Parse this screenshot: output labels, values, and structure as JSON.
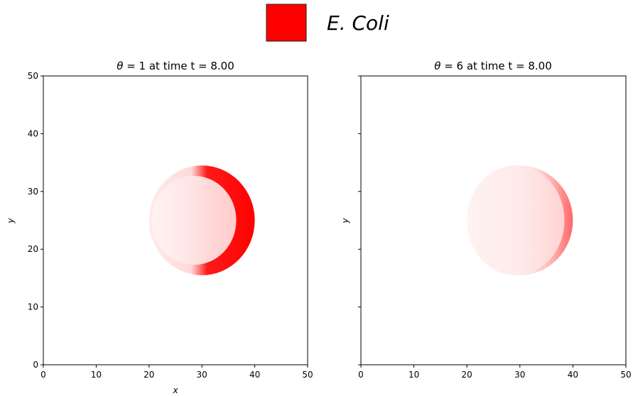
{
  "legend": {
    "label": "E. Coli",
    "color": "#ff0000",
    "position": "top-center"
  },
  "colors": {
    "accent": "#ff0000"
  },
  "chart_data": [
    {
      "type": "heatmap",
      "title": "θ = 1 at time t = 8.00",
      "title_symbol": "θ",
      "title_rest": " = 1 at time t = 8.00",
      "xlabel": "x",
      "ylabel": "y",
      "xlim": [
        0,
        50
      ],
      "ylim": [
        0,
        50
      ],
      "xticks": [
        "0",
        "10",
        "20",
        "30",
        "40",
        "50"
      ],
      "yticks": [
        "0",
        "10",
        "20",
        "30",
        "40",
        "50"
      ],
      "show_yticklabels": true,
      "show_xlabel": true,
      "colony": {
        "center": [
          30,
          25
        ],
        "rx": 10,
        "ry": 9.5,
        "inner_center": [
          28.5,
          25
        ],
        "inner_rx": 8,
        "inner_ry": 7.7,
        "ring_opacity": 1.0,
        "fill_opacity": 0.12
      }
    },
    {
      "type": "heatmap",
      "title": "θ = 6 at time t = 8.00",
      "title_symbol": "θ",
      "title_rest": " = 6 at time t = 8.00",
      "xlabel": "",
      "ylabel": "y",
      "xlim": [
        0,
        50
      ],
      "ylim": [
        0,
        50
      ],
      "xticks": [
        "0",
        "10",
        "20",
        "30",
        "40",
        "50"
      ],
      "yticks": [
        "0",
        "10",
        "20",
        "30",
        "40",
        "50"
      ],
      "show_yticklabels": false,
      "show_xlabel": false,
      "colony": {
        "center": [
          30,
          25
        ],
        "rx": 10,
        "ry": 9.5,
        "inner_center": [
          29.2,
          25
        ],
        "inner_rx": 9.2,
        "inner_ry": 9.5,
        "ring_opacity": 0.45,
        "fill_opacity": 0.1
      }
    }
  ]
}
